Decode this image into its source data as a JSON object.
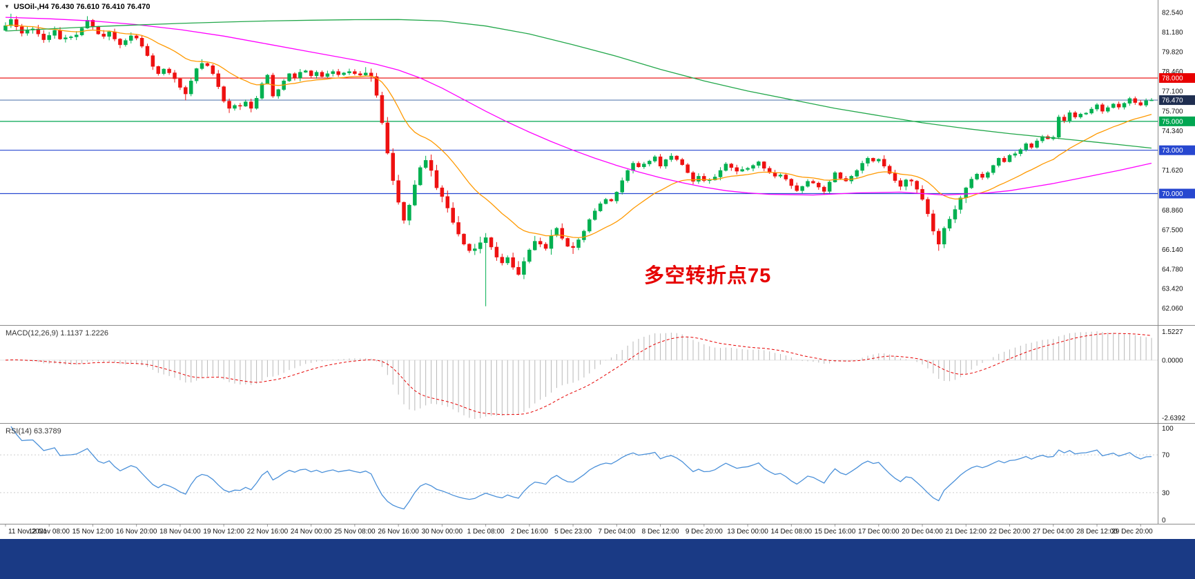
{
  "header": {
    "collapse_icon": "▼",
    "symbol_title": "USOil-,H4 76.430 76.610 76.410 76.470"
  },
  "indicators": {
    "macd_label": "MACD(12,26,9) 1.1137 1.2226",
    "rsi_label": "RSI(14) 63.3789"
  },
  "annotation": {
    "text": "多空转折点75",
    "color": "#E60000"
  },
  "window": {
    "footer_color": "#1A3A85"
  },
  "chart_data": {
    "type": "candlestick",
    "symbol": "USOil",
    "timeframe": "H4",
    "current_ohlc": {
      "open": 76.43,
      "high": 76.61,
      "low": 76.41,
      "close": 76.47
    },
    "up_color": "#00B050",
    "down_color": "#EE1111",
    "price_axis_labels": [
      "82.540",
      "81.180",
      "79.820",
      "78.460",
      "77.100",
      "75.700",
      "74.340",
      "71.620",
      "68.860",
      "67.500",
      "66.140",
      "64.780",
      "63.420",
      "62.060"
    ],
    "levels": [
      {
        "value": 78.0,
        "line_color": "#E80000",
        "tag": "78.000",
        "tag_color": "#E80000"
      },
      {
        "value": 76.47,
        "line_color": "#5B7DB1",
        "tag": "76.470",
        "tag_color": "#1F2E50"
      },
      {
        "value": 75.0,
        "line_color": "#00A651",
        "tag": "75.000",
        "tag_color": "#00A651"
      },
      {
        "value": 73.0,
        "line_color": "#2747D0",
        "tag": "73.000",
        "tag_color": "#2747D0"
      },
      {
        "value": 70.0,
        "line_color": "#2747D0",
        "tag": "70.000",
        "tag_color": "#2747D0"
      }
    ],
    "time_labels": [
      "11 Nov 2021",
      "12 Nov 08:00",
      "15 Nov 12:00",
      "16 Nov 20:00",
      "18 Nov 04:00",
      "19 Nov 12:00",
      "22 Nov 16:00",
      "24 Nov 00:00",
      "25 Nov 08:00",
      "26 Nov 16:00",
      "30 Nov 00:00",
      "1 Dec 08:00",
      "2 Dec 16:00",
      "5 Dec 23:00",
      "7 Dec 04:00",
      "8 Dec 12:00",
      "9 Dec 20:00",
      "13 Dec 00:00",
      "14 Dec 08:00",
      "15 Dec 16:00",
      "17 Dec 00:00",
      "20 Dec 04:00",
      "21 Dec 12:00",
      "22 Dec 20:00",
      "27 Dec 04:00",
      "28 Dec 12:00",
      "29 Dec 20:00"
    ],
    "time_label_every": 8,
    "first_open": 81.3,
    "open_rule": "previous_close",
    "closes": [
      81.62,
      82.05,
      81.55,
      81.1,
      81.32,
      81.4,
      81.05,
      80.65,
      80.95,
      81.3,
      80.7,
      80.79,
      80.85,
      80.98,
      81.45,
      82.0,
      81.55,
      81.05,
      80.88,
      81.2,
      80.7,
      80.3,
      80.6,
      80.92,
      80.76,
      80.2,
      79.55,
      78.8,
      78.3,
      78.62,
      78.36,
      77.95,
      77.35,
      76.9,
      77.8,
      78.65,
      79.01,
      78.85,
      78.3,
      77.4,
      76.4,
      75.9,
      76.1,
      76.05,
      76.35,
      75.9,
      76.6,
      77.6,
      78.2,
      76.75,
      77.2,
      77.8,
      78.3,
      78.0,
      78.4,
      78.5,
      78.15,
      78.4,
      78.1,
      78.3,
      78.45,
      78.23,
      78.35,
      78.45,
      78.3,
      78.2,
      78.35,
      78.1,
      76.8,
      74.9,
      72.8,
      70.9,
      69.4,
      68.15,
      69.2,
      70.6,
      71.8,
      72.3,
      71.6,
      70.4,
      69.8,
      69.0,
      68.0,
      67.2,
      66.5,
      66.05,
      66.18,
      66.6,
      66.95,
      66.3,
      65.6,
      65.2,
      65.57,
      64.9,
      64.4,
      65.3,
      66.1,
      66.7,
      66.5,
      66.2,
      67.1,
      67.6,
      66.9,
      66.35,
      66.26,
      66.8,
      67.4,
      68.2,
      68.8,
      69.3,
      69.6,
      69.49,
      70.1,
      70.9,
      71.6,
      72.1,
      71.85,
      72.05,
      72.25,
      72.55,
      71.9,
      72.35,
      72.6,
      72.36,
      72.0,
      71.45,
      70.85,
      71.2,
      70.9,
      70.94,
      71.15,
      71.6,
      72.05,
      71.8,
      71.55,
      71.67,
      71.75,
      71.95,
      72.2,
      71.75,
      71.45,
      71.2,
      71.29,
      71.0,
      70.55,
      70.2,
      70.5,
      70.85,
      70.73,
      70.45,
      70.15,
      70.8,
      71.45,
      71.05,
      70.87,
      71.2,
      71.6,
      72.1,
      72.45,
      72.25,
      72.38,
      71.9,
      71.4,
      70.9,
      70.5,
      70.95,
      70.86,
      70.3,
      69.6,
      68.6,
      67.4,
      66.5,
      67.6,
      68.23,
      68.9,
      69.7,
      70.4,
      71.0,
      71.35,
      71.12,
      71.45,
      71.95,
      72.45,
      72.2,
      72.65,
      72.76,
      73.05,
      73.45,
      73.2,
      73.65,
      73.95,
      73.79,
      73.9,
      75.3,
      75.05,
      75.6,
      75.3,
      75.5,
      75.57,
      75.85,
      76.15,
      75.7,
      75.95,
      76.2,
      75.98,
      76.25,
      76.58,
      76.3,
      76.12,
      76.43,
      76.47
    ],
    "wick_overrides": {
      "1": {
        "h": 82.45
      },
      "15": {
        "h": 82.28
      },
      "33": {
        "l": 76.46
      },
      "36": {
        "h": 79.3
      },
      "41": {
        "l": 75.58
      },
      "68": {
        "h": 78.35
      },
      "88": {
        "l": 62.2
      },
      "171": {
        "l": 66.04
      },
      "210": {
        "h": 76.61,
        "l": 76.41
      }
    },
    "ma_lines": [
      {
        "name": "fast",
        "color": "#FF9900",
        "type": "ema",
        "period": 20
      },
      {
        "name": "mid",
        "color": "#FF00FF",
        "points": [
          [
            0,
            82.2
          ],
          [
            8,
            82.1
          ],
          [
            16,
            81.95
          ],
          [
            24,
            81.7
          ],
          [
            32,
            81.35
          ],
          [
            40,
            80.9
          ],
          [
            48,
            80.35
          ],
          [
            56,
            79.8
          ],
          [
            64,
            79.25
          ],
          [
            68,
            78.95
          ],
          [
            72,
            78.55
          ],
          [
            76,
            78.0
          ],
          [
            80,
            77.3
          ],
          [
            84,
            76.5
          ],
          [
            88,
            75.7
          ],
          [
            92,
            74.95
          ],
          [
            96,
            74.25
          ],
          [
            100,
            73.6
          ],
          [
            104,
            73.0
          ],
          [
            108,
            72.45
          ],
          [
            112,
            71.95
          ],
          [
            116,
            71.5
          ],
          [
            120,
            71.1
          ],
          [
            124,
            70.75
          ],
          [
            128,
            70.45
          ],
          [
            132,
            70.2
          ],
          [
            136,
            70.05
          ],
          [
            140,
            69.95
          ],
          [
            148,
            69.9
          ],
          [
            156,
            70.05
          ],
          [
            164,
            70.1
          ],
          [
            168,
            70.0
          ],
          [
            172,
            69.9
          ],
          [
            180,
            70.05
          ],
          [
            184,
            70.2
          ],
          [
            188,
            70.45
          ],
          [
            192,
            70.7
          ],
          [
            196,
            71.0
          ],
          [
            200,
            71.3
          ],
          [
            204,
            71.6
          ],
          [
            210,
            72.1
          ]
        ]
      },
      {
        "name": "slow",
        "color": "#22A74A",
        "points": [
          [
            0,
            81.25
          ],
          [
            8,
            81.4
          ],
          [
            16,
            81.55
          ],
          [
            24,
            81.67
          ],
          [
            32,
            81.78
          ],
          [
            40,
            81.87
          ],
          [
            48,
            81.95
          ],
          [
            56,
            82.0
          ],
          [
            64,
            82.04
          ],
          [
            72,
            82.05
          ],
          [
            80,
            81.95
          ],
          [
            88,
            81.6
          ],
          [
            96,
            81.05
          ],
          [
            104,
            80.3
          ],
          [
            112,
            79.5
          ],
          [
            120,
            78.6
          ],
          [
            128,
            77.8
          ],
          [
            136,
            77.1
          ],
          [
            144,
            76.5
          ],
          [
            152,
            75.9
          ],
          [
            160,
            75.4
          ],
          [
            168,
            74.9
          ],
          [
            176,
            74.5
          ],
          [
            184,
            74.15
          ],
          [
            192,
            73.85
          ],
          [
            200,
            73.55
          ],
          [
            210,
            73.15
          ]
        ]
      }
    ],
    "macd": {
      "params": [
        12,
        26,
        9
      ],
      "value": 1.1137,
      "signal_value": 1.2226,
      "axis_max": "1.5227",
      "axis_zero": "0.0000",
      "axis_min": "-2.6392",
      "hist_color": "#B8B8B8",
      "signal_color": "#E60000"
    },
    "rsi": {
      "period": 14,
      "value": 63.3789,
      "color": "#4A90D9",
      "levels": [
        70,
        30
      ],
      "axis_labels": [
        "100",
        "70",
        "30",
        "0"
      ]
    }
  }
}
